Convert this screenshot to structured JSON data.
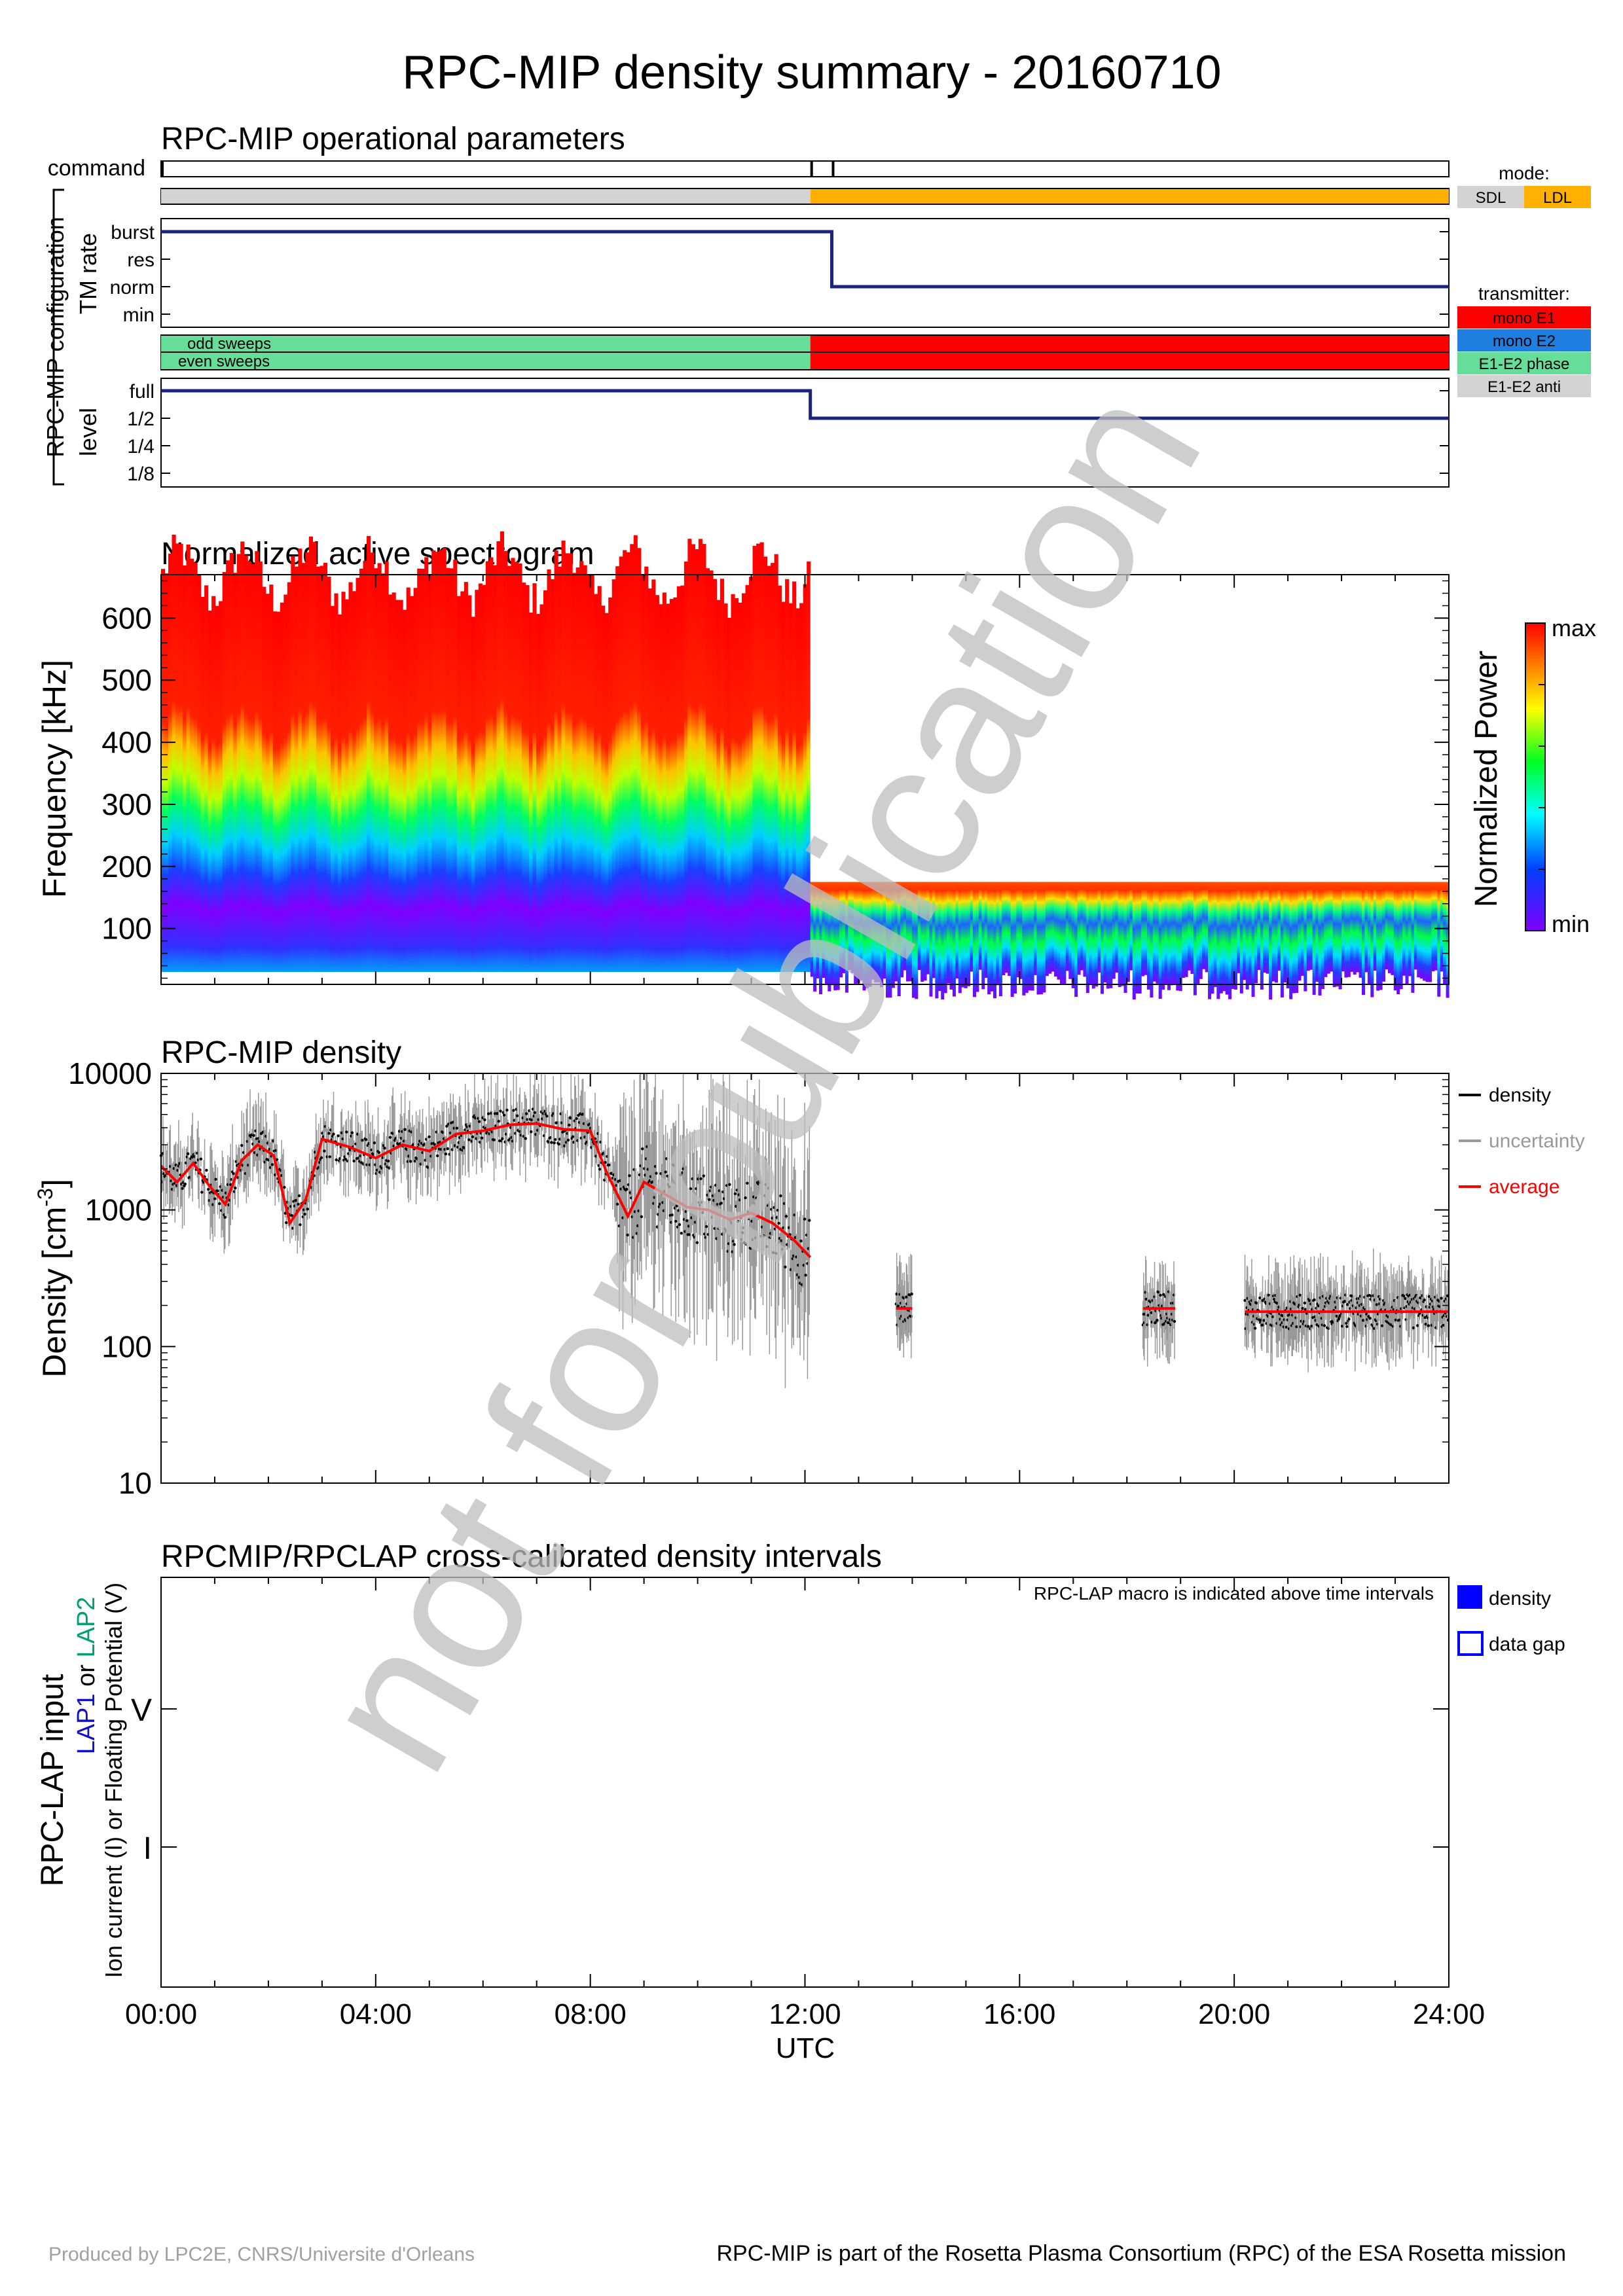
{
  "title": "RPC-MIP density summary - 20160710",
  "watermark": "not for publication",
  "footer": {
    "left": "Produced by LPC2E, CNRS/Universite d'Orleans",
    "right": "RPC-MIP is part of the Rosetta Plasma Consortium (RPC) of the ESA Rosetta mission"
  },
  "time_axis": {
    "ticks": [
      "00:00",
      "04:00",
      "08:00",
      "12:00",
      "16:00",
      "20:00",
      "24:00"
    ],
    "label": "UTC",
    "range_hours": [
      0,
      24
    ]
  },
  "colors": {
    "sdl": "#d3d3d3",
    "ldl": "#ffb000",
    "mono_e1": "#ff0000",
    "mono_e2": "#1f7fe0",
    "e1e2_phase": "#66dd99",
    "e1e2_anti": "#d3d3d3",
    "line": "#1a237e",
    "density": "#000000",
    "uncertainty": "#999999",
    "average": "#ff0000",
    "lap_density": "#0000ff",
    "lap1": "#1010cc",
    "lap2": "#00a070"
  },
  "operational": {
    "title": "RPC-MIP operational parameters",
    "command_label": "command",
    "command_times_h": [
      0.0,
      12.1,
      12.5
    ],
    "mode_segments": [
      {
        "mode": "SDL",
        "start_h": 0,
        "end_h": 12.1
      },
      {
        "mode": "LDL",
        "start_h": 12.1,
        "end_h": 24
      }
    ],
    "mode_legend": {
      "title": "mode:",
      "items": [
        "SDL",
        "LDL"
      ]
    },
    "configuration_label": "RPC-MIP configuration",
    "tm_rate": {
      "label": "TM rate",
      "levels": [
        "burst",
        "res",
        "norm",
        "min"
      ],
      "steps": [
        {
          "start_h": 0,
          "end_h": 12.5,
          "level": "burst"
        },
        {
          "start_h": 12.5,
          "end_h": 24,
          "level": "norm"
        }
      ]
    },
    "sweeps": {
      "odd_label": "odd sweeps",
      "even_label": "even sweeps",
      "segments": [
        {
          "transmitter": "E1-E2 phase",
          "start_h": 0,
          "end_h": 12.1
        },
        {
          "transmitter": "mono E1",
          "start_h": 12.1,
          "end_h": 24
        }
      ]
    },
    "transmitter_legend": {
      "title": "transmitter:",
      "items": [
        "mono E1",
        "mono E2",
        "E1-E2 phase",
        "E1-E2 anti"
      ]
    },
    "level": {
      "label": "level",
      "levels": [
        "full",
        "1/2",
        "1/4",
        "1/8"
      ],
      "steps": [
        {
          "start_h": 0,
          "end_h": 12.1,
          "level": "full"
        },
        {
          "start_h": 12.1,
          "end_h": 24,
          "level": "1/2"
        }
      ]
    }
  },
  "spectrogram": {
    "title": "Normalized active spectrogram",
    "ylabel": "Frequency [kHz]",
    "yticks": [
      "100",
      "200",
      "300",
      "400",
      "500",
      "600"
    ],
    "ylim_khz": [
      10,
      670
    ],
    "colorbar_label": "Normalized Power",
    "colorbar_max": "max",
    "colorbar_min": "min"
  },
  "chart_data": {
    "type": "scatter",
    "title": "RPC-MIP density",
    "ylabel": "Density [cm-3]",
    "ylabel_main": "Density [cm",
    "ylabel_sup": "-3",
    "ylabel_end": "]",
    "yscale": "log",
    "ylim": [
      10,
      10000
    ],
    "yticks": [
      "10",
      "100",
      "1000",
      "10000"
    ],
    "xlim_hours": [
      0,
      24
    ],
    "legend": [
      "density",
      "uncertainty",
      "average"
    ],
    "average_series": {
      "name": "average",
      "x_hours": [
        0.0,
        0.3,
        0.6,
        0.9,
        1.2,
        1.5,
        1.8,
        2.1,
        2.4,
        2.7,
        3.0,
        3.5,
        4.0,
        4.5,
        5.0,
        5.5,
        6.0,
        6.5,
        7.0,
        7.5,
        8.0,
        8.3,
        8.7,
        9.0,
        9.4,
        9.8,
        10.2,
        10.6,
        11.0,
        11.4,
        11.8,
        12.1
      ],
      "y": [
        2100,
        1600,
        2200,
        1500,
        1100,
        2300,
        3000,
        2500,
        800,
        1200,
        3300,
        2900,
        2400,
        3000,
        2700,
        3600,
        3800,
        4200,
        4300,
        3900,
        3800,
        1900,
        900,
        1600,
        1300,
        1050,
        1000,
        850,
        950,
        800,
        600,
        450
      ]
    },
    "segments": [
      {
        "start_h": 0.0,
        "end_h": 12.1,
        "level": "varies (see average)"
      },
      {
        "start_h": 13.7,
        "end_h": 14.0,
        "level": 190
      },
      {
        "start_h": 18.3,
        "end_h": 18.9,
        "level": 190
      },
      {
        "start_h": 20.2,
        "end_h": 24.0,
        "level": 180
      }
    ]
  },
  "lap": {
    "title": "RPCMIP/RPCLAP cross-calibrated density intervals",
    "macro_note": "RPC-LAP macro is indicated above time intervals",
    "ylabel1": "RPC-LAP input",
    "ylabel_lap1": "LAP1",
    "ylabel_or": " or ",
    "ylabel_lap2": "LAP2",
    "ylabel3": "Ion current (I) or Floating Potential (V)",
    "yticks": [
      "V",
      "I"
    ],
    "legend": [
      "density",
      "data gap"
    ]
  }
}
